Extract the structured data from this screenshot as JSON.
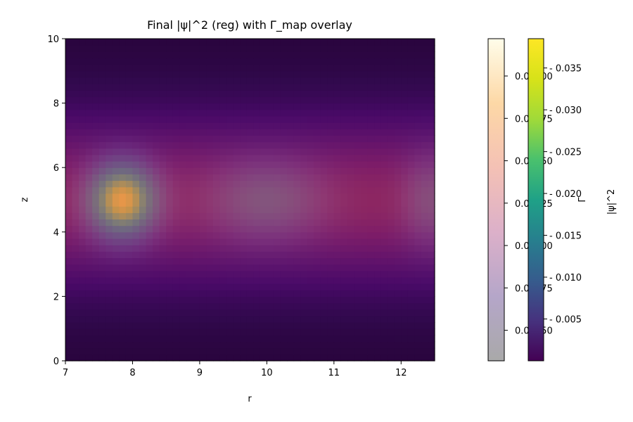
{
  "chart_data": {
    "type": "heatmap",
    "title": "Final |ψ|^2 (reg) with Γ_map overlay",
    "xlabel": "r",
    "ylabel": "z",
    "xlim": [
      7,
      12.5
    ],
    "ylim": [
      0,
      10
    ],
    "x_ticks": [
      "7",
      "8",
      "9",
      "10",
      "11",
      "12"
    ],
    "y_ticks": [
      "0",
      "2",
      "4",
      "6",
      "8",
      "10"
    ],
    "grid": false,
    "psi2_field": {
      "colormap": "viridis",
      "peak_r": 7.85,
      "peak_z": 5.0,
      "peak_value": 0.038,
      "sigma_r": 0.35,
      "sigma_z": 0.8,
      "min_value": 0.0,
      "max_value": 0.038
    },
    "gamma_field": {
      "colormap": "magma",
      "z_center": 5.0,
      "z_width": 2.6,
      "min_value": 0.0583,
      "max_value": 0.0602
    },
    "overlay_colorbar": {
      "label": "Γ",
      "colormap": "gray-pink-yellow",
      "range": [
        0.05832,
        0.06022
      ],
      "ticks": [
        "0.05850",
        "0.05875",
        "0.05900",
        "0.05925",
        "0.05950",
        "0.05975",
        "0.06000"
      ]
    },
    "psi_colorbar": {
      "label": "|ψ|^2",
      "colormap": "viridis",
      "range": [
        0.0,
        0.0385
      ],
      "ticks": [
        "0.005",
        "0.010",
        "0.015",
        "0.020",
        "0.025",
        "0.030",
        "0.035"
      ]
    }
  }
}
